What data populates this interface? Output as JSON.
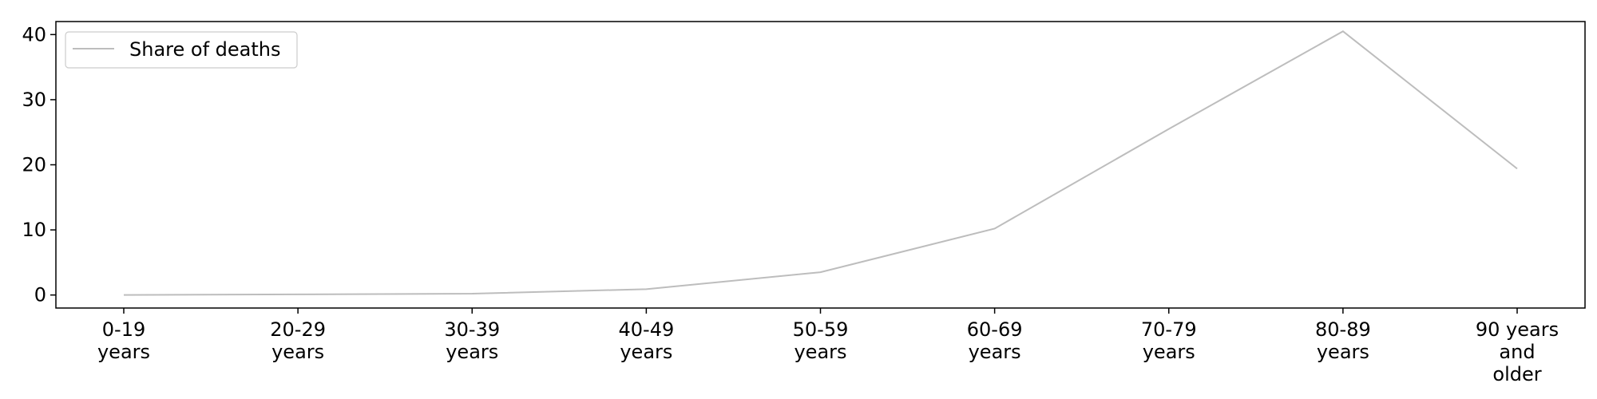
{
  "chart_data": {
    "type": "line",
    "title": "",
    "xlabel": "",
    "ylabel": "",
    "categories": [
      [
        "0-19",
        "years"
      ],
      [
        "20-29",
        "years"
      ],
      [
        "30-39",
        "years"
      ],
      [
        "40-49",
        "years"
      ],
      [
        "50-59",
        "years"
      ],
      [
        "60-69",
        "years"
      ],
      [
        "70-79",
        "years"
      ],
      [
        "80-89",
        "years"
      ],
      [
        "90 years",
        "and",
        "older"
      ]
    ],
    "series": [
      {
        "name": "Share of deaths",
        "values": [
          0.0,
          0.1,
          0.2,
          0.9,
          3.5,
          10.2,
          25.5,
          40.5,
          19.4
        ],
        "color": "#bdbdbd"
      }
    ],
    "ylim": [
      -2,
      42
    ],
    "yticks": [
      0,
      10,
      20,
      30,
      40
    ],
    "grid": false,
    "legend_position": "top-left"
  }
}
